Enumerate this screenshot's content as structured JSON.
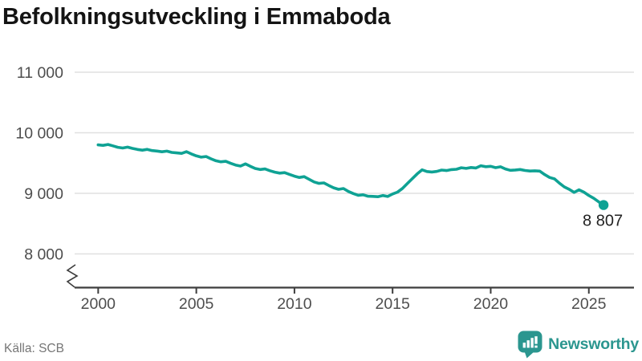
{
  "header": {
    "title": "Befolkningsutveckling i Emmaboda"
  },
  "footer": {
    "source": "Källa: SCB",
    "brand": "Newsworthy",
    "brand_icon": "newsworthy-speech-bubble-barchart-icon"
  },
  "colors": {
    "line": "#0fa294",
    "grid": "#e0e0e0",
    "axis": "#3d3d3d",
    "tick_text": "#4e4e4e",
    "title_text": "#141414",
    "end_label_text": "#222222",
    "source_text": "#767676",
    "brand_teal": "#2b968f"
  },
  "chart_data": {
    "type": "line",
    "title": "Befolkningsutveckling i Emmaboda",
    "xlabel": "",
    "ylabel": "",
    "grid": "horizontal",
    "legend": "none",
    "axis_break_bottom_left": true,
    "x_range": [
      1998.8,
      2027.3
    ],
    "y_range": [
      8000,
      11000
    ],
    "yticks": [
      {
        "value": 8000,
        "label": "8 000"
      },
      {
        "value": 9000,
        "label": "9 000"
      },
      {
        "value": 10000,
        "label": "10 000"
      },
      {
        "value": 11000,
        "label": "11 000"
      }
    ],
    "xticks": [
      {
        "value": 2000,
        "label": "2000"
      },
      {
        "value": 2005,
        "label": "2005"
      },
      {
        "value": 2010,
        "label": "2010"
      },
      {
        "value": 2015,
        "label": "2015"
      },
      {
        "value": 2020,
        "label": "2020"
      },
      {
        "value": 2025,
        "label": "2025"
      }
    ],
    "end_label": "8 807",
    "end_value": 8807,
    "series": [
      {
        "name": "Befolkning i Emmaboda",
        "x": [
          2000.0,
          2000.25,
          2000.5,
          2000.75,
          2001.0,
          2001.25,
          2001.5,
          2001.75,
          2002.0,
          2002.25,
          2002.5,
          2002.75,
          2003.0,
          2003.25,
          2003.5,
          2003.75,
          2004.0,
          2004.25,
          2004.5,
          2004.75,
          2005.0,
          2005.25,
          2005.5,
          2005.75,
          2006.0,
          2006.25,
          2006.5,
          2006.75,
          2007.0,
          2007.25,
          2007.5,
          2007.75,
          2008.0,
          2008.25,
          2008.5,
          2008.75,
          2009.0,
          2009.25,
          2009.5,
          2009.75,
          2010.0,
          2010.25,
          2010.5,
          2010.75,
          2011.0,
          2011.25,
          2011.5,
          2011.75,
          2012.0,
          2012.25,
          2012.5,
          2012.75,
          2013.0,
          2013.25,
          2013.5,
          2013.75,
          2014.0,
          2014.25,
          2014.5,
          2014.75,
          2015.0,
          2015.25,
          2015.5,
          2015.75,
          2016.0,
          2016.25,
          2016.5,
          2016.75,
          2017.0,
          2017.25,
          2017.5,
          2017.75,
          2018.0,
          2018.25,
          2018.5,
          2018.75,
          2019.0,
          2019.25,
          2019.5,
          2019.75,
          2020.0,
          2020.25,
          2020.5,
          2020.75,
          2021.0,
          2021.25,
          2021.5,
          2021.75,
          2022.0,
          2022.25,
          2022.5,
          2022.75,
          2023.0,
          2023.25,
          2023.5,
          2023.75,
          2024.0,
          2024.25,
          2024.5,
          2024.75,
          2025.0,
          2025.25,
          2025.5,
          2025.75
        ],
        "y": [
          9800,
          9792,
          9806,
          9784,
          9760,
          9749,
          9763,
          9742,
          9724,
          9712,
          9726,
          9706,
          9698,
          9686,
          9697,
          9676,
          9668,
          9660,
          9688,
          9650,
          9618,
          9598,
          9608,
          9570,
          9538,
          9520,
          9528,
          9496,
          9468,
          9450,
          9486,
          9446,
          9410,
          9394,
          9402,
          9374,
          9350,
          9334,
          9342,
          9312,
          9284,
          9262,
          9276,
          9230,
          9188,
          9164,
          9172,
          9130,
          9092,
          9066,
          9080,
          9030,
          8996,
          8968,
          8976,
          8952,
          8950,
          8944,
          8964,
          8948,
          8990,
          9020,
          9080,
          9160,
          9240,
          9320,
          9388,
          9360,
          9352,
          9362,
          9384,
          9376,
          9392,
          9398,
          9422,
          9412,
          9426,
          9418,
          9455,
          9440,
          9446,
          9424,
          9438,
          9402,
          9380,
          9386,
          9393,
          9377,
          9368,
          9372,
          9367,
          9310,
          9262,
          9238,
          9168,
          9106,
          9066,
          9016,
          9058,
          9020,
          8964,
          8918,
          8860,
          8807
        ]
      }
    ]
  }
}
